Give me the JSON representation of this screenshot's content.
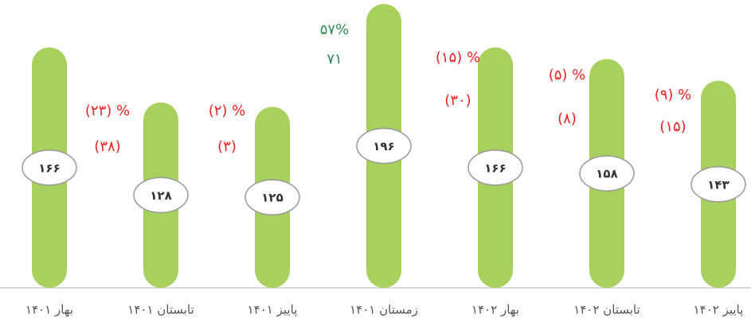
{
  "chart_data": {
    "type": "bar",
    "categories": [
      "بهار ۱۴۰۱",
      "تابستان ۱۴۰۱",
      "پاییز ۱۴۰۱",
      "زمستان ۱۴۰۱",
      "بهار ۱۴۰۲",
      "تابستان ۱۴۰۲",
      "پاییز ۱۴۰۲"
    ],
    "values": [
      166,
      128,
      125,
      196,
      166,
      158,
      143
    ],
    "value_labels": [
      "۱۶۶",
      "۱۲۸",
      "۱۲۵",
      "۱۹۶",
      "۱۶۶",
      "۱۵۸",
      "۱۴۳"
    ],
    "color": "#a8d05c",
    "changes": [
      {
        "percent_label": "(۲۳) %",
        "diff_label": "(۳۸)",
        "color": "#ee2222"
      },
      {
        "percent_label": "(۲) %",
        "diff_label": "(۳)",
        "color": "#ee2222"
      },
      {
        "percent_label": "۵۷%",
        "diff_label": "۷۱",
        "color": "#2e8b57"
      },
      {
        "percent_label": "(۱۵) %",
        "diff_label": "(۳۰)",
        "color": "#ee2222"
      },
      {
        "percent_label": "(۵) %",
        "diff_label": "(۸)",
        "color": "#ee2222"
      },
      {
        "percent_label": "(۹) %",
        "diff_label": "(۱۵)",
        "color": "#ee2222"
      }
    ]
  }
}
